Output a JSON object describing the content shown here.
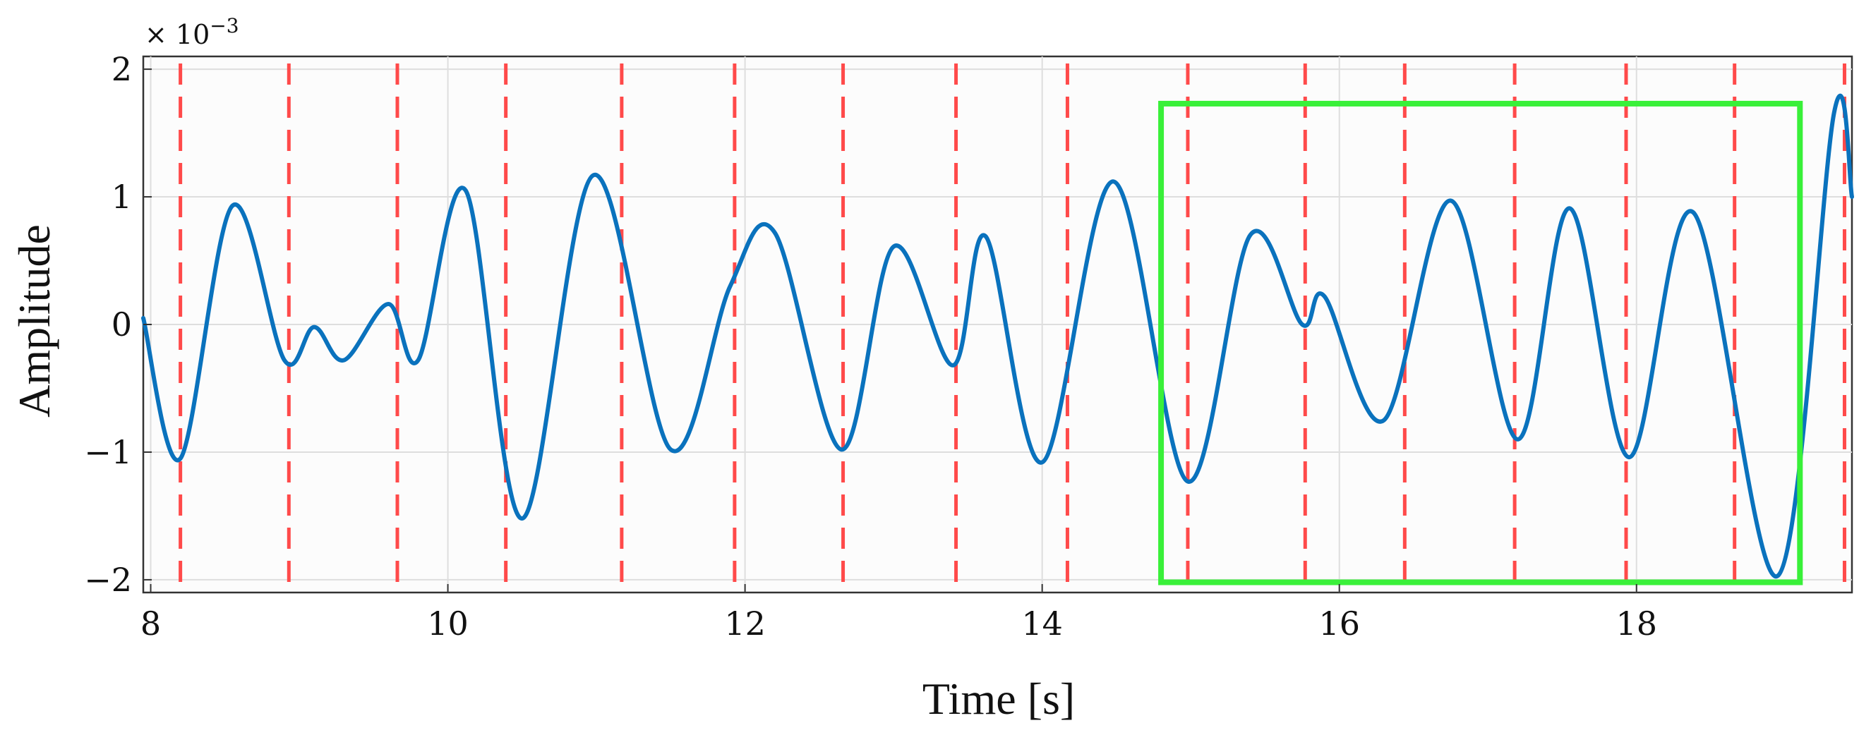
{
  "chart_data": {
    "type": "line",
    "xlabel": "Time [s]",
    "ylabel": "Amplitude",
    "y_exponent_label": "× 10",
    "y_exponent_power": "−3",
    "xlim": [
      7.95,
      19.45
    ],
    "ylim": [
      -2.1,
      2.1
    ],
    "x_ticks": [
      8,
      10,
      12,
      14,
      16,
      18
    ],
    "x_tick_labels": [
      "8",
      "10",
      "12",
      "14",
      "16",
      "18"
    ],
    "y_ticks": [
      -2,
      -1,
      0,
      1,
      2
    ],
    "y_tick_labels": [
      "−2",
      "−1",
      "0",
      "1",
      "2"
    ],
    "grid": true,
    "colors": {
      "signal": "#0a72bd",
      "markers": "#ff4a4a",
      "highlight": "#39f039"
    },
    "series": [
      {
        "x": [
          7.95,
          8.2,
          8.55,
          8.9,
          9.1,
          9.3,
          9.6,
          9.8,
          10.12,
          10.5,
          10.98,
          11.5,
          11.9,
          12.2,
          12.65,
          13.0,
          13.4,
          13.62,
          14.0,
          14.48,
          14.98,
          15.4,
          15.75,
          15.9,
          16.3,
          16.75,
          17.2,
          17.55,
          17.95,
          18.38,
          18.95,
          19.33,
          19.45
        ],
        "y": [
          0.05,
          -1.05,
          0.93,
          -0.28,
          -0.02,
          -0.28,
          0.16,
          -0.28,
          1.05,
          -1.52,
          1.17,
          -0.98,
          0.3,
          0.72,
          -0.98,
          0.61,
          -0.32,
          0.69,
          -1.08,
          1.12,
          -1.23,
          0.7,
          0.0,
          0.22,
          -0.75,
          0.97,
          -0.9,
          0.91,
          -1.04,
          0.88,
          -1.97,
          1.66,
          1.0
        ]
      }
    ],
    "vertical_markers_x": [
      8.2,
      8.93,
      9.66,
      10.39,
      11.17,
      11.93,
      12.66,
      13.42,
      14.17,
      14.98,
      15.77,
      16.44,
      17.18,
      17.93,
      18.66,
      19.4
    ],
    "highlight_region": {
      "x": [
        14.8,
        19.1
      ],
      "y": [
        -2.02,
        1.73
      ]
    }
  }
}
